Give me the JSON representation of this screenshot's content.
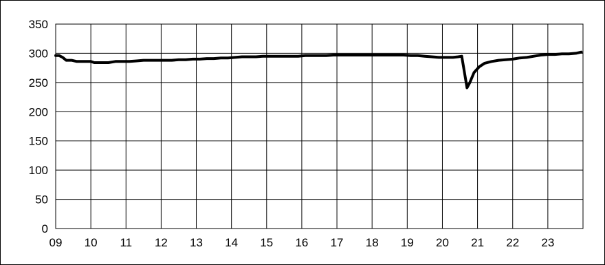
{
  "chart_data": {
    "type": "line",
    "x_categories": [
      "09",
      "10",
      "11",
      "12",
      "13",
      "14",
      "15",
      "16",
      "17",
      "18",
      "19",
      "20",
      "21",
      "22",
      "23"
    ],
    "xlim": [
      0,
      15
    ],
    "ylim": [
      0,
      350
    ],
    "y_ticks": [
      0,
      50,
      100,
      150,
      200,
      250,
      300,
      350
    ],
    "grid": true,
    "series": [
      {
        "color": "#000000",
        "points": [
          [
            0.0,
            296
          ],
          [
            0.1,
            296
          ],
          [
            0.2,
            293
          ],
          [
            0.3,
            288
          ],
          [
            0.45,
            288
          ],
          [
            0.6,
            286
          ],
          [
            0.8,
            286
          ],
          [
            1.0,
            286
          ],
          [
            1.1,
            284
          ],
          [
            1.3,
            284
          ],
          [
            1.5,
            284
          ],
          [
            1.7,
            286
          ],
          [
            1.9,
            286
          ],
          [
            2.1,
            286
          ],
          [
            2.3,
            287
          ],
          [
            2.5,
            288
          ],
          [
            2.7,
            288
          ],
          [
            2.9,
            288
          ],
          [
            3.1,
            288
          ],
          [
            3.3,
            288
          ],
          [
            3.5,
            289
          ],
          [
            3.7,
            289
          ],
          [
            3.9,
            290
          ],
          [
            4.1,
            290
          ],
          [
            4.3,
            291
          ],
          [
            4.5,
            291
          ],
          [
            4.7,
            292
          ],
          [
            4.9,
            292
          ],
          [
            5.1,
            293
          ],
          [
            5.3,
            294
          ],
          [
            5.5,
            294
          ],
          [
            5.7,
            294
          ],
          [
            5.9,
            295
          ],
          [
            6.1,
            295
          ],
          [
            6.3,
            295
          ],
          [
            6.5,
            295
          ],
          [
            6.7,
            295
          ],
          [
            6.9,
            295
          ],
          [
            7.1,
            296
          ],
          [
            7.3,
            296
          ],
          [
            7.5,
            296
          ],
          [
            7.7,
            296
          ],
          [
            7.9,
            297
          ],
          [
            8.1,
            297
          ],
          [
            8.3,
            297
          ],
          [
            8.5,
            297
          ],
          [
            8.7,
            297
          ],
          [
            8.9,
            297
          ],
          [
            9.1,
            297
          ],
          [
            9.3,
            297
          ],
          [
            9.5,
            297
          ],
          [
            9.7,
            297
          ],
          [
            9.9,
            297
          ],
          [
            10.1,
            296
          ],
          [
            10.3,
            296
          ],
          [
            10.5,
            295
          ],
          [
            10.7,
            294
          ],
          [
            10.9,
            293
          ],
          [
            11.1,
            293
          ],
          [
            11.3,
            293
          ],
          [
            11.45,
            294
          ],
          [
            11.55,
            295
          ],
          [
            11.62,
            270
          ],
          [
            11.7,
            241
          ],
          [
            11.78,
            250
          ],
          [
            11.9,
            267
          ],
          [
            12.05,
            277
          ],
          [
            12.2,
            283
          ],
          [
            12.4,
            286
          ],
          [
            12.6,
            288
          ],
          [
            12.8,
            289
          ],
          [
            13.0,
            290
          ],
          [
            13.2,
            292
          ],
          [
            13.4,
            293
          ],
          [
            13.6,
            295
          ],
          [
            13.8,
            297
          ],
          [
            14.0,
            298
          ],
          [
            14.2,
            298
          ],
          [
            14.4,
            299
          ],
          [
            14.6,
            299
          ],
          [
            14.8,
            300
          ],
          [
            14.95,
            302
          ]
        ]
      }
    ]
  }
}
